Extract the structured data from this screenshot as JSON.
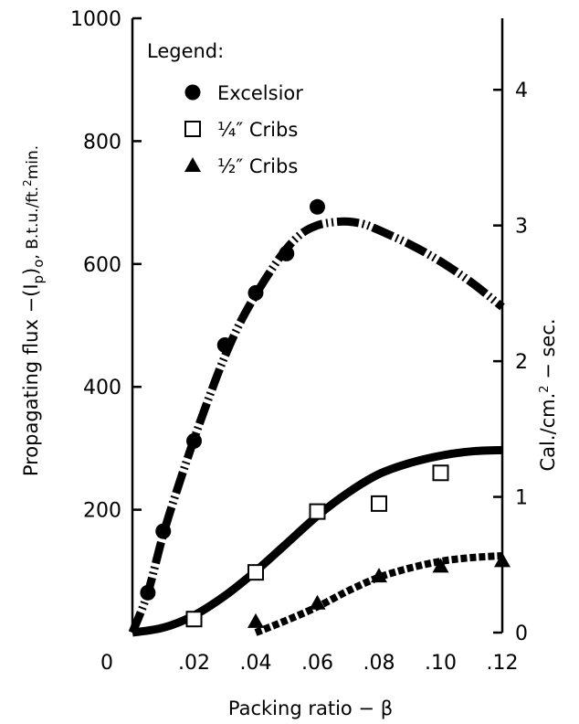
{
  "chart_data": {
    "type": "scatter",
    "x": {
      "label": "Packing ratio  −  β",
      "lim": [
        0,
        0.12
      ],
      "ticks": [
        0,
        0.02,
        0.04,
        0.06,
        0.08,
        0.1,
        0.12
      ],
      "tick_labels": [
        "0",
        ".02",
        ".04",
        ".06",
        ".08",
        ".10",
        ".12"
      ]
    },
    "y_left": {
      "label_main": "Propagating flux −(I",
      "label_sub1": "p",
      "label_mid": ")",
      "label_sub2": "o",
      "label_units": ", B.t.u./ft.",
      "label_sup": "2",
      "label_end": "min.",
      "lim": [
        0,
        1000
      ],
      "ticks": [
        0,
        200,
        400,
        600,
        800,
        1000
      ],
      "tick_labels": [
        "",
        "200",
        "400",
        "600",
        "800",
        "1000"
      ]
    },
    "y_right": {
      "label_main": "Cal./cm.",
      "label_sup": "2",
      "label_end": " − sec.",
      "ticks": [
        0,
        1,
        2,
        3,
        4
      ],
      "tick_labels": [
        "0",
        "1",
        "2",
        "3",
        "4"
      ],
      "conversion_per_left_unit": 0.004527
    },
    "legend": {
      "title": "Legend:",
      "position": "top-left",
      "entries": [
        {
          "label": "Excelsior",
          "marker": "filled-circle"
        },
        {
          "label": "¼″ Cribs",
          "marker": "open-square"
        },
        {
          "label": "½″ Cribs",
          "marker": "filled-triangle"
        }
      ]
    },
    "series": [
      {
        "name": "Excelsior",
        "marker": "filled-circle",
        "line": "dash-dot",
        "points": [
          [
            0.005,
            65
          ],
          [
            0.01,
            165
          ],
          [
            0.02,
            312
          ],
          [
            0.03,
            468
          ],
          [
            0.04,
            553
          ],
          [
            0.05,
            617
          ],
          [
            0.06,
            693
          ]
        ],
        "curve": [
          [
            0,
            0
          ],
          [
            0.005,
            65
          ],
          [
            0.01,
            160
          ],
          [
            0.015,
            240
          ],
          [
            0.02,
            315
          ],
          [
            0.025,
            385
          ],
          [
            0.03,
            450
          ],
          [
            0.035,
            505
          ],
          [
            0.04,
            550
          ],
          [
            0.045,
            590
          ],
          [
            0.05,
            625
          ],
          [
            0.055,
            650
          ],
          [
            0.06,
            663
          ],
          [
            0.065,
            668
          ],
          [
            0.07,
            669
          ],
          [
            0.075,
            665
          ],
          [
            0.08,
            655
          ],
          [
            0.09,
            632
          ],
          [
            0.1,
            604
          ],
          [
            0.11,
            570
          ],
          [
            0.12,
            530
          ]
        ]
      },
      {
        "name": "¼″ Cribs",
        "marker": "open-square",
        "line": "solid",
        "points": [
          [
            0.02,
            22
          ],
          [
            0.04,
            98
          ],
          [
            0.06,
            197
          ],
          [
            0.08,
            210
          ],
          [
            0.1,
            260
          ]
        ],
        "curve": [
          [
            0,
            0
          ],
          [
            0.01,
            8
          ],
          [
            0.02,
            28
          ],
          [
            0.03,
            60
          ],
          [
            0.04,
            100
          ],
          [
            0.05,
            145
          ],
          [
            0.06,
            190
          ],
          [
            0.07,
            228
          ],
          [
            0.08,
            258
          ],
          [
            0.09,
            276
          ],
          [
            0.1,
            288
          ],
          [
            0.11,
            295
          ],
          [
            0.12,
            297
          ]
        ]
      },
      {
        "name": "½″ Cribs",
        "marker": "filled-triangle",
        "line": "dotted",
        "points": [
          [
            0.04,
            18
          ],
          [
            0.06,
            48
          ],
          [
            0.08,
            92
          ],
          [
            0.1,
            108
          ],
          [
            0.12,
            117
          ]
        ],
        "curve": [
          [
            0.04,
            0
          ],
          [
            0.05,
            20
          ],
          [
            0.06,
            42
          ],
          [
            0.07,
            68
          ],
          [
            0.08,
            90
          ],
          [
            0.09,
            105
          ],
          [
            0.1,
            116
          ],
          [
            0.11,
            122
          ],
          [
            0.12,
            125
          ]
        ]
      }
    ]
  }
}
